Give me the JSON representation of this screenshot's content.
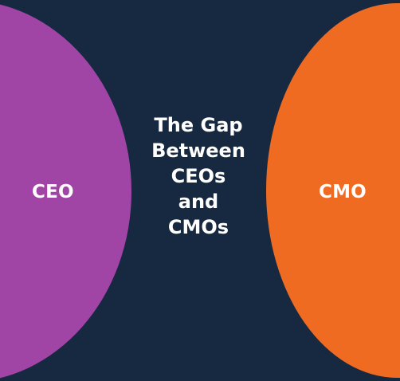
{
  "colors": {
    "background": "#162940",
    "ceo_circle": "#a044a6",
    "cmo_circle": "#f06b22",
    "text": "#ffffff"
  },
  "diagram": {
    "title_lines": [
      "The Gap",
      "Between",
      "CEOs",
      "and",
      "CMOs"
    ],
    "left_circle": {
      "label": "CEO"
    },
    "right_circle": {
      "label": "CMO"
    }
  }
}
